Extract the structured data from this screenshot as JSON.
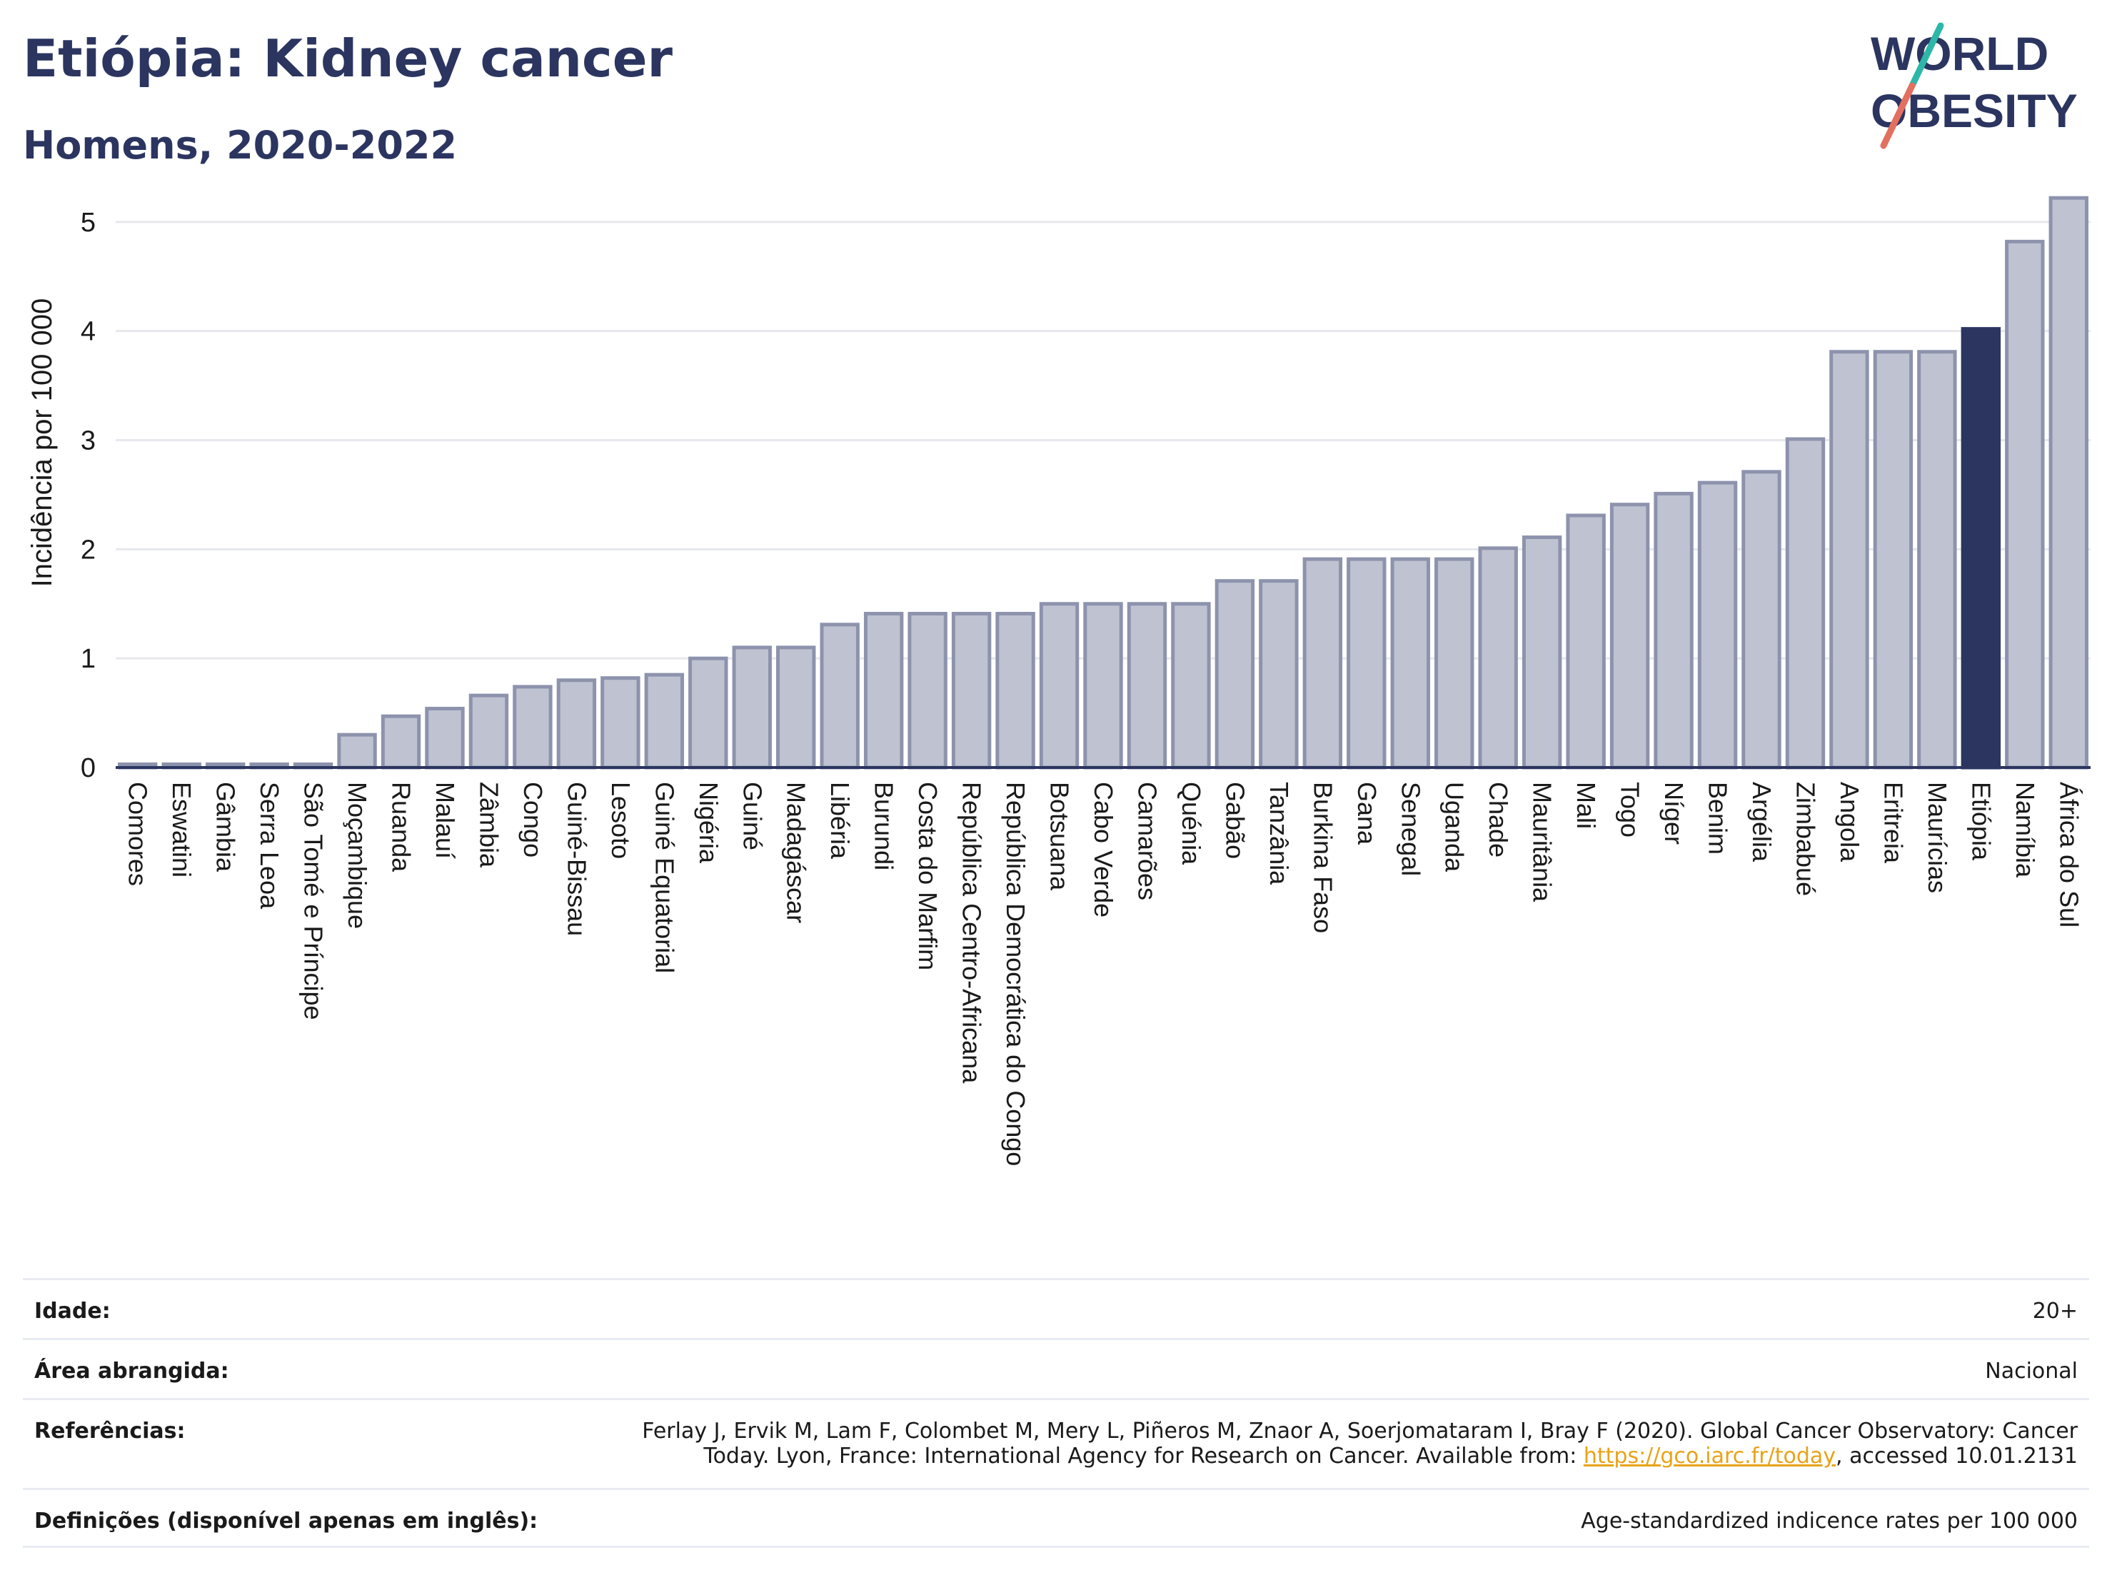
{
  "header": {
    "title": "Etiópia: Kidney cancer",
    "subtitle": "Homens, 2020-2022"
  },
  "logo": {
    "line1": "WORLD",
    "line2": "OBESITY"
  },
  "chart_data": {
    "type": "bar",
    "ylabel": "Incidência por 100 000",
    "ylim": [
      0,
      5.3
    ],
    "yticks": [
      0,
      1,
      2,
      3,
      4,
      5
    ],
    "grid": true,
    "highlight": "Etiópia",
    "colors": {
      "bar": "#bfc3d1",
      "bar_edge": "#8d93ad",
      "highlight": "#2b3560"
    },
    "categories": [
      "Comores",
      "Eswatini",
      "Gâmbia",
      "Serra Leoa",
      "São Tomé e Príncipe",
      "Moçambique",
      "Ruanda",
      "Malauí",
      "Zâmbia",
      "Congo",
      "Guiné-Bissau",
      "Lesoto",
      "Guiné Equatorial",
      "Nigéria",
      "Guiné",
      "Madagáscar",
      "Libéria",
      "Burundi",
      "Costa do Marfim",
      "República Centro-Africana",
      "República Democrática do Congo",
      "Botsuana",
      "Cabo Verde",
      "Camarões",
      "Quénia",
      "Gabão",
      "Tanzânia",
      "Burkina Faso",
      "Gana",
      "Senegal",
      "Uganda",
      "Chade",
      "Mauritânia",
      "Mali",
      "Togo",
      "Níger",
      "Benim",
      "Argélia",
      "Zimbabué",
      "Angola",
      "Eritreia",
      "Maurícias",
      "Etiópia",
      "Namíbia",
      "África do Sul"
    ],
    "values": [
      0.03,
      0.03,
      0.03,
      0.03,
      0.03,
      0.3,
      0.47,
      0.54,
      0.66,
      0.74,
      0.8,
      0.82,
      0.85,
      1.0,
      1.1,
      1.1,
      1.31,
      1.41,
      1.41,
      1.41,
      1.41,
      1.5,
      1.5,
      1.5,
      1.5,
      1.71,
      1.71,
      1.91,
      1.91,
      1.91,
      1.91,
      2.01,
      2.11,
      2.31,
      2.41,
      2.51,
      2.61,
      2.71,
      3.01,
      3.81,
      3.81,
      3.81,
      4.02,
      4.82,
      5.22
    ]
  },
  "meta": [
    {
      "label": "Idade:",
      "value": "20+"
    },
    {
      "label": "Área abrangida:",
      "value": "Nacional"
    },
    {
      "label": "Referências:",
      "value_line1": "Ferlay J, Ervik M, Lam F, Colombet M, Mery L, Piñeros M, Znaor A, Soerjomataram I, Bray F (2020). Global Cancer Observatory: Cancer",
      "value_line2_pre": "Today. Lyon, France: International Agency for Research on Cancer. Available from: ",
      "link": "https://gco.iarc.fr/today",
      "value_line2_post": ", accessed 10.01.2131"
    },
    {
      "label": "Definições (disponível apenas em inglês):",
      "value": "Age-standardized indicence rates per 100 000"
    }
  ]
}
